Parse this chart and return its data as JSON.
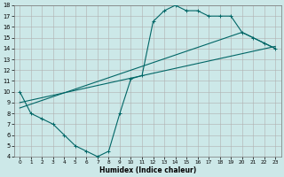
{
  "xlabel": "Humidex (Indice chaleur)",
  "bg_color": "#cce8e8",
  "grid_color": "#b0b0b0",
  "line_color": "#006666",
  "xlim": [
    -0.5,
    23.5
  ],
  "ylim": [
    4,
    18
  ],
  "xticks": [
    0,
    1,
    2,
    3,
    4,
    5,
    6,
    7,
    8,
    9,
    10,
    11,
    12,
    13,
    14,
    15,
    16,
    17,
    18,
    19,
    20,
    21,
    22,
    23
  ],
  "yticks": [
    4,
    5,
    6,
    7,
    8,
    9,
    10,
    11,
    12,
    13,
    14,
    15,
    16,
    17,
    18
  ],
  "line1_x": [
    0,
    1,
    2,
    3,
    4,
    5,
    6,
    7,
    8,
    9,
    10,
    11,
    12,
    13,
    14,
    15,
    16,
    17,
    18,
    19,
    20,
    21,
    22,
    23
  ],
  "line1_y": [
    10,
    8,
    7.5,
    7,
    6,
    5,
    4.5,
    4,
    4.5,
    8,
    11.2,
    11.5,
    16.5,
    17.5,
    18,
    17.5,
    17.5,
    17,
    17,
    17,
    15.5,
    15,
    14.5,
    14
  ],
  "line2_x": [
    0,
    20,
    21,
    22,
    23
  ],
  "line2_y": [
    8.5,
    15.5,
    15,
    14.5,
    14
  ],
  "line3_x": [
    0,
    23
  ],
  "line3_y": [
    9.0,
    14.2
  ]
}
